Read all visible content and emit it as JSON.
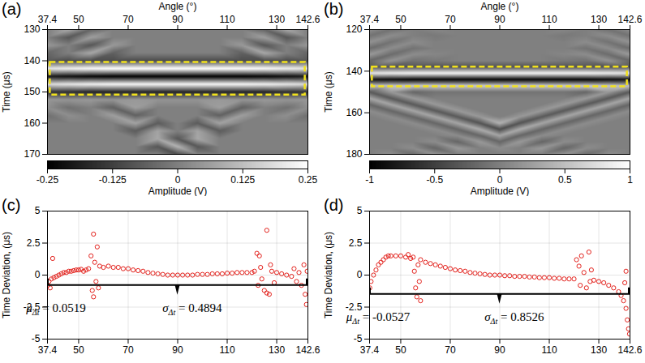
{
  "chart_data": [
    {
      "type": "heatmap",
      "panel": "(a)",
      "xlabel": "Angle (°)",
      "ylabel": "Time (μs)",
      "xlim": [
        37.4,
        142.6
      ],
      "xticks": [
        37.4,
        50,
        70,
        90,
        110,
        130,
        142.6
      ],
      "ylim": [
        130,
        170
      ],
      "yticks": [
        130,
        140,
        150,
        160,
        170
      ],
      "x": [
        37.4,
        46,
        55,
        64,
        73,
        82,
        90,
        98,
        107,
        116,
        125,
        134,
        142.6
      ],
      "y": [
        130,
        132.5,
        135,
        137.5,
        140,
        142.5,
        145,
        147.5,
        150,
        152.5,
        155,
        157.5,
        160,
        162.5,
        165,
        167.5,
        170
      ],
      "cells": [
        [
          0,
          0.08,
          -0.05,
          0,
          0,
          0,
          0,
          0,
          0,
          0,
          -0.05,
          0.08,
          0
        ],
        [
          0,
          -0.08,
          0.06,
          0,
          0,
          0,
          0,
          0,
          0,
          0,
          0.06,
          -0.08,
          0
        ],
        [
          0.05,
          0,
          -0.08,
          0.05,
          0,
          0,
          0,
          0,
          0,
          0.05,
          -0.08,
          0,
          0.05
        ],
        [
          -0.05,
          0,
          0.08,
          -0.06,
          0,
          0,
          0,
          0,
          0,
          -0.06,
          0.08,
          0,
          -0.05
        ],
        [
          -0.08,
          -0.1,
          -0.1,
          -0.1,
          -0.1,
          -0.1,
          -0.1,
          -0.1,
          -0.1,
          -0.1,
          -0.1,
          -0.1,
          -0.08
        ],
        [
          0.2,
          0.22,
          0.24,
          0.25,
          0.25,
          0.25,
          0.25,
          0.25,
          0.25,
          0.25,
          0.24,
          0.22,
          0.2
        ],
        [
          -0.2,
          -0.22,
          -0.24,
          -0.25,
          -0.25,
          -0.25,
          -0.25,
          -0.25,
          -0.25,
          -0.25,
          -0.24,
          -0.22,
          -0.2
        ],
        [
          0.18,
          0.2,
          0.22,
          0.23,
          0.23,
          0.23,
          0.23,
          0.23,
          0.23,
          0.23,
          0.22,
          0.2,
          0.18
        ],
        [
          -0.15,
          -0.16,
          -0.18,
          -0.18,
          -0.18,
          -0.18,
          -0.18,
          -0.18,
          -0.18,
          -0.18,
          -0.18,
          -0.16,
          -0.15
        ],
        [
          0.05,
          0.04,
          0.05,
          0.04,
          0.05,
          0.04,
          0.04,
          0.04,
          0.05,
          0.04,
          0.05,
          0.04,
          0.05
        ],
        [
          0.03,
          -0.03,
          0,
          -0.06,
          0.06,
          0,
          0,
          0,
          0.06,
          -0.06,
          0,
          -0.03,
          0.03
        ],
        [
          -0.03,
          0.03,
          0,
          0.06,
          -0.06,
          0,
          0,
          0,
          -0.06,
          0.06,
          0,
          0.03,
          -0.03
        ],
        [
          0,
          0,
          0,
          0,
          0.07,
          -0.07,
          0,
          -0.07,
          0.07,
          0,
          0,
          0,
          0
        ],
        [
          0,
          0,
          0,
          0,
          -0.07,
          0.07,
          0,
          0.07,
          -0.07,
          0,
          0,
          0,
          0
        ],
        [
          0,
          0,
          0,
          0,
          0,
          0.08,
          -0.08,
          0.08,
          0,
          0,
          0,
          0,
          0
        ],
        [
          0,
          0,
          0,
          0,
          0,
          -0.08,
          0.1,
          -0.08,
          0,
          0,
          0,
          0,
          0
        ],
        [
          0,
          0,
          0,
          0,
          0,
          0,
          -0.1,
          0,
          0,
          0,
          0,
          0,
          0
        ]
      ],
      "colorbar": {
        "label": "Amplitude (V)",
        "range": [
          -0.25,
          0.25
        ],
        "ticks": [
          -0.25,
          -0.125,
          0,
          0.125,
          0.25
        ]
      },
      "window": {
        "angle": [
          38.5,
          141.5
        ],
        "time": [
          140.5,
          151
        ],
        "color": "#f2e21c",
        "line_style": "dashed"
      }
    },
    {
      "type": "heatmap",
      "panel": "(b)",
      "xlabel": "Angle (°)",
      "ylabel": "Time (μs)",
      "xlim": [
        37.4,
        142.6
      ],
      "xticks": [
        37.4,
        50,
        70,
        90,
        110,
        130,
        142.6
      ],
      "ylim": [
        120,
        180
      ],
      "yticks": [
        120,
        140,
        160,
        180
      ],
      "x": [
        37.4,
        46,
        55,
        64,
        73,
        82,
        90,
        98,
        107,
        116,
        125,
        134,
        142.6
      ],
      "y": [
        120,
        123,
        126,
        129,
        132,
        135,
        138,
        141,
        144,
        147,
        150,
        153,
        156,
        159,
        162,
        165,
        168,
        171,
        174,
        177,
        180
      ],
      "cells": [
        [
          0.1,
          -0.1,
          0,
          0.05,
          0,
          0,
          0,
          0,
          0,
          0.05,
          0,
          -0.1,
          0.1
        ],
        [
          -0.1,
          0.1,
          0,
          -0.05,
          0,
          0,
          0,
          0,
          0,
          -0.05,
          0,
          0.1,
          -0.1
        ],
        [
          0.15,
          -0.1,
          0.1,
          0,
          0,
          0,
          0,
          0,
          0,
          0,
          0.1,
          -0.1,
          0.15
        ],
        [
          -0.15,
          0.1,
          -0.1,
          0,
          0,
          0,
          0,
          0,
          0,
          0,
          -0.1,
          0.1,
          -0.15
        ],
        [
          0.2,
          -0.15,
          0.1,
          0.05,
          0,
          0,
          0,
          0,
          0,
          0.05,
          0.1,
          -0.15,
          0.2
        ],
        [
          -0.2,
          0.15,
          -0.1,
          -0.05,
          0,
          0,
          0,
          0,
          0,
          -0.05,
          -0.1,
          0.15,
          -0.2
        ],
        [
          -0.3,
          -0.35,
          -0.35,
          -0.35,
          -0.35,
          -0.35,
          -0.35,
          -0.35,
          -0.35,
          -0.35,
          -0.35,
          -0.35,
          -0.3
        ],
        [
          0.8,
          0.85,
          0.9,
          0.9,
          0.9,
          0.9,
          0.9,
          0.9,
          0.9,
          0.9,
          0.9,
          0.85,
          0.8
        ],
        [
          -0.85,
          -0.9,
          -0.95,
          -0.95,
          -0.95,
          -0.95,
          -0.95,
          -0.95,
          -0.95,
          -0.95,
          -0.95,
          -0.9,
          -0.85
        ],
        [
          0.5,
          0.55,
          0.6,
          0.6,
          0.6,
          0.6,
          0.6,
          0.6,
          0.6,
          0.6,
          0.6,
          0.55,
          0.5
        ],
        [
          -0.3,
          0.2,
          -0.2,
          -0.1,
          -0.1,
          -0.1,
          -0.1,
          -0.1,
          -0.1,
          -0.1,
          -0.2,
          0.2,
          -0.3
        ],
        [
          0.3,
          -0.3,
          0.2,
          0,
          0,
          0,
          0,
          0,
          0,
          0,
          0.2,
          -0.3,
          0.3
        ],
        [
          -0.2,
          0.3,
          -0.3,
          0.2,
          0,
          0,
          0,
          0,
          0,
          0.2,
          -0.3,
          0.3,
          -0.2
        ],
        [
          0.1,
          -0.2,
          0.3,
          -0.3,
          0.2,
          0,
          0,
          0,
          0.2,
          -0.3,
          0.3,
          -0.2,
          0.1
        ],
        [
          0,
          0.1,
          -0.2,
          0.3,
          -0.3,
          0.2,
          0,
          0.2,
          -0.3,
          0.3,
          -0.2,
          0.1,
          0
        ],
        [
          0,
          0,
          0.1,
          -0.2,
          0.3,
          -0.35,
          0.4,
          -0.35,
          0.3,
          -0.2,
          0.1,
          0,
          0
        ],
        [
          0,
          0,
          0,
          0.1,
          -0.2,
          0.35,
          -0.4,
          0.35,
          -0.2,
          0.1,
          0,
          0,
          0
        ],
        [
          0,
          0,
          0,
          0,
          0.1,
          -0.2,
          0.3,
          -0.2,
          0.1,
          0,
          0,
          0,
          0
        ],
        [
          0,
          0,
          0,
          0.1,
          -0.2,
          0.2,
          -0.2,
          0.2,
          -0.2,
          0.1,
          0,
          0,
          0
        ],
        [
          0,
          0,
          0.1,
          -0.2,
          0.2,
          0,
          0.1,
          0,
          0.2,
          -0.2,
          0.1,
          0,
          0
        ],
        [
          0,
          0.1,
          -0.15,
          0.15,
          0,
          0,
          0,
          0,
          0,
          0.15,
          -0.15,
          0.1,
          0
        ]
      ],
      "colorbar": {
        "label": "Amplitude (V)",
        "range": [
          -1,
          1
        ],
        "ticks": [
          -1,
          -0.5,
          0,
          0.5,
          1
        ]
      },
      "window": {
        "angle": [
          38.5,
          141.5
        ],
        "time": [
          138,
          147.5
        ],
        "color": "#f2e21c",
        "line_style": "dashed"
      }
    },
    {
      "type": "scatter",
      "panel": "(c)",
      "ylabel": "Time Deviation, (μs)",
      "xlim": [
        37.4,
        142.6
      ],
      "xticks": [
        37.4,
        50,
        70,
        90,
        110,
        130,
        142.6
      ],
      "ylim": [
        -5,
        5
      ],
      "yticks": [
        -5,
        -2.5,
        0,
        2.5,
        5
      ],
      "grid": true,
      "color": "#e3211c",
      "marker": "circle",
      "x": [
        37.5,
        38,
        38.5,
        39,
        39.5,
        40,
        41,
        42,
        43,
        44,
        45,
        46,
        47,
        48,
        49,
        50,
        51,
        52,
        53,
        54,
        55,
        55.5,
        56,
        56,
        56.5,
        57,
        57.5,
        58,
        58.5,
        60,
        62,
        64,
        66,
        68,
        70,
        72,
        74,
        76,
        78,
        80,
        82,
        84,
        86,
        88,
        90,
        92,
        94,
        96,
        98,
        100,
        102,
        104,
        106,
        108,
        110,
        112,
        114,
        116,
        118,
        120,
        121,
        122,
        122.5,
        123,
        123.5,
        124,
        125,
        126,
        126,
        127,
        127.5,
        128,
        129,
        130,
        132,
        134,
        136,
        137,
        138,
        139,
        140,
        141,
        141.5,
        142,
        142.3
      ],
      "values": [
        -0.8,
        -0.5,
        -1.0,
        -0.3,
        1.3,
        -0.2,
        -0.1,
        0.0,
        0.1,
        0.2,
        0.2,
        0.3,
        0.3,
        0.35,
        0.4,
        0.4,
        0.45,
        0.3,
        0.4,
        0.5,
        1.5,
        -1.2,
        3.2,
        -1.7,
        1.0,
        -0.5,
        2.2,
        -1.0,
        0.7,
        0.6,
        0.7,
        0.6,
        0.6,
        0.5,
        0.5,
        0.4,
        0.35,
        0.3,
        0.2,
        0.15,
        0.1,
        0.05,
        0.0,
        0.0,
        0.0,
        0.0,
        0.0,
        0.0,
        0.05,
        0.05,
        0.05,
        0.1,
        0.1,
        0.1,
        0.15,
        0.15,
        0.2,
        0.2,
        0.2,
        0.2,
        0.3,
        1.7,
        -0.8,
        1.5,
        0.6,
        -0.3,
        -1.2,
        -1.4,
        3.5,
        -1.5,
        0.8,
        0.3,
        -0.6,
        0.2,
        0.1,
        0.0,
        -0.1,
        0.5,
        -0.5,
        0.2,
        -0.8,
        0.8,
        -1.5,
        -2.3,
        0.3
      ],
      "bracket": {
        "x": [
          37.4,
          142.6
        ],
        "y": -0.8,
        "pointer_x": 90
      },
      "annotations": [
        {
          "symbol": "μ",
          "subscript": "Δt",
          "relation": "=",
          "value": 0.0519,
          "x": 41,
          "y": -2.9
        },
        {
          "symbol": "σ",
          "subscript": "Δt",
          "relation": "=",
          "value": 0.4894,
          "x": 96,
          "y": -2.9
        }
      ]
    },
    {
      "type": "scatter",
      "panel": "(d)",
      "ylabel": "Time Deviation, (μs)",
      "xlim": [
        37.4,
        142.6
      ],
      "xticks": [
        37.4,
        50,
        70,
        90,
        110,
        130,
        142.6
      ],
      "ylim": [
        -5,
        5
      ],
      "yticks": [
        -5,
        -2.5,
        0,
        2.5,
        5
      ],
      "grid": true,
      "color": "#e3211c",
      "marker": "circle",
      "x": [
        37.5,
        38,
        39,
        40,
        41,
        42,
        43,
        44,
        45,
        46,
        48,
        50,
        52,
        53,
        54,
        55,
        55.5,
        56,
        56.5,
        57,
        57.5,
        58,
        58,
        60,
        62,
        64,
        66,
        68,
        70,
        72,
        74,
        76,
        78,
        80,
        82,
        84,
        86,
        88,
        90,
        92,
        94,
        96,
        98,
        100,
        102,
        104,
        106,
        108,
        110,
        112,
        114,
        116,
        118,
        120,
        121,
        122,
        122.5,
        123,
        124,
        125,
        126,
        126.5,
        127,
        128,
        130,
        132,
        134,
        136,
        138,
        139,
        140,
        140.5,
        141,
        141,
        141.5,
        142,
        142.4
      ],
      "values": [
        -1.0,
        -0.5,
        0.0,
        0.4,
        0.8,
        1.0,
        1.2,
        1.4,
        1.5,
        1.5,
        1.5,
        1.5,
        1.4,
        1.6,
        1.3,
        1.4,
        0.3,
        -1.0,
        -1.7,
        0.8,
        -0.5,
        -2.0,
        1.2,
        1.0,
        0.9,
        0.8,
        0.7,
        0.6,
        0.5,
        0.4,
        0.35,
        0.3,
        0.2,
        0.15,
        0.1,
        0.05,
        0.0,
        0.0,
        0.0,
        -0.05,
        -0.05,
        -0.1,
        -0.1,
        -0.1,
        -0.15,
        -0.15,
        -0.2,
        -0.2,
        -0.2,
        -0.25,
        -0.25,
        -0.3,
        -0.3,
        -0.3,
        1.2,
        0.7,
        -0.8,
        1.5,
        0.2,
        -1.0,
        1.8,
        -0.5,
        0.4,
        -0.4,
        -0.5,
        -0.6,
        -0.8,
        -1.0,
        -1.3,
        -1.6,
        -2.0,
        -0.6,
        -2.6,
        0.3,
        -3.5,
        -4.2,
        -4.6
      ],
      "bracket": {
        "x": [
          37.4,
          142.6
        ],
        "y": -1.5,
        "pointer_x": 90
      },
      "annotations": [
        {
          "symbol": "μ",
          "subscript": "Δt",
          "relation": "=",
          "value": -0.0527,
          "x": 41,
          "y": -3.6
        },
        {
          "symbol": "σ",
          "subscript": "Δt",
          "relation": "=",
          "value": 0.8526,
          "x": 96,
          "y": -3.6
        }
      ]
    }
  ]
}
